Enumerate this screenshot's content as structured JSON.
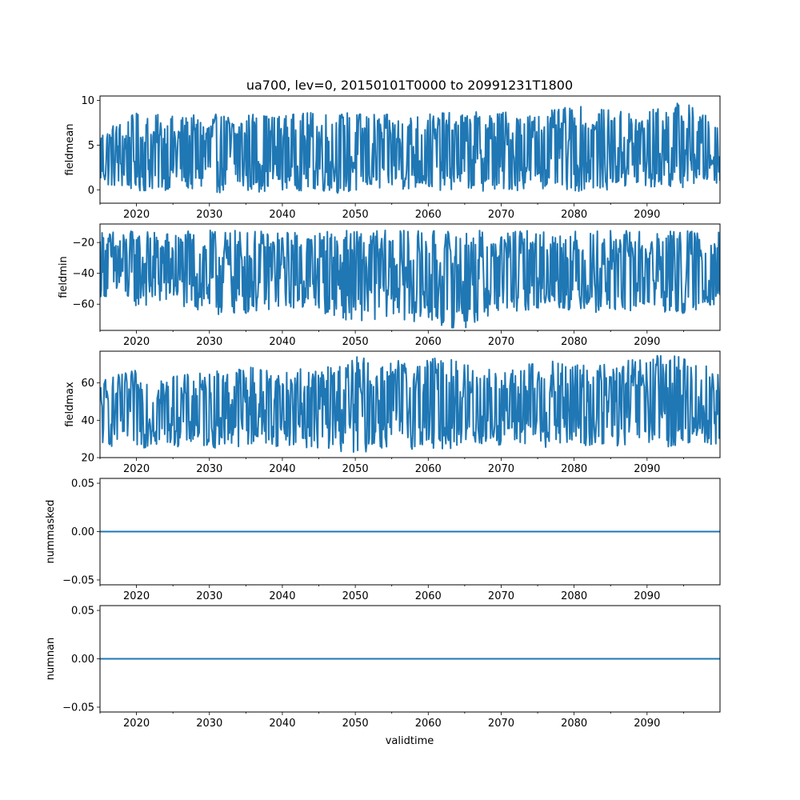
{
  "title": "ua700, lev=0, 20150101T0000 to 20991231T1800",
  "xlabel": "validtime",
  "chart_data": [
    {
      "type": "line",
      "ylabel": "fieldmean",
      "xlim": [
        2015.0,
        2100.0
      ],
      "ylim": [
        -1.5,
        10.5
      ],
      "xticks": [
        2020,
        2030,
        2040,
        2050,
        2060,
        2070,
        2080,
        2090
      ],
      "yticks": [
        0,
        5,
        10
      ],
      "ytick_labels": [
        "0",
        "5",
        "10"
      ],
      "series": [
        {
          "color": "#1f77b4",
          "envelope": {
            "x": [
              2015.0,
              2020.0,
              2025.0,
              2030.0,
              2035.0,
              2040.0,
              2045.0,
              2050.0,
              2055.0,
              2060.0,
              2065.0,
              2070.0,
              2075.0,
              2080.0,
              2085.0,
              2090.0,
              2095.0,
              2100.0
            ],
            "high": [
              6.8,
              8.6,
              8.3,
              8.4,
              8.7,
              8.4,
              8.8,
              8.7,
              8.4,
              8.6,
              8.7,
              8.9,
              8.6,
              9.4,
              8.9,
              8.9,
              10.0,
              7.3
            ],
            "low": [
              0.5,
              -0.3,
              0.0,
              -0.3,
              -0.4,
              0.0,
              -0.2,
              -0.6,
              0.0,
              -0.1,
              0.0,
              -0.3,
              0.2,
              -0.2,
              0.0,
              0.0,
              0.2,
              0.8
            ]
          }
        }
      ]
    },
    {
      "type": "line",
      "ylabel": "fieldmin",
      "xlim": [
        2015.0,
        2100.0
      ],
      "ylim": [
        -77.0,
        -8.0
      ],
      "xticks": [
        2020,
        2030,
        2040,
        2050,
        2060,
        2070,
        2080,
        2090
      ],
      "yticks": [
        -60,
        -40,
        -20
      ],
      "ytick_labels": [
        "−60",
        "−40",
        "−20"
      ],
      "series": [
        {
          "color": "#1f77b4",
          "envelope": {
            "x": [
              2015.0,
              2020.0,
              2025.0,
              2030.0,
              2035.0,
              2040.0,
              2045.0,
              2050.0,
              2055.0,
              2060.0,
              2065.0,
              2070.0,
              2075.0,
              2080.0,
              2085.0,
              2090.0,
              2095.0,
              2100.0
            ],
            "high": [
              -12,
              -12,
              -13,
              -12,
              -12,
              -13,
              -12,
              -12,
              -12,
              -12,
              -12,
              -12,
              -12,
              -12,
              -12,
              -12,
              -12,
              -12
            ],
            "low": [
              -55,
              -62,
              -60,
              -68,
              -67,
              -62,
              -65,
              -72,
              -68,
              -74,
              -76,
              -66,
              -63,
              -64,
              -66,
              -64,
              -68,
              -60
            ]
          }
        }
      ]
    },
    {
      "type": "line",
      "ylabel": "fieldmax",
      "xlim": [
        2015.0,
        2100.0
      ],
      "ylim": [
        20.0,
        77.0
      ],
      "xticks": [
        2020,
        2030,
        2040,
        2050,
        2060,
        2070,
        2080,
        2090
      ],
      "yticks": [
        20,
        40,
        60
      ],
      "ytick_labels": [
        "20",
        "40",
        "60"
      ],
      "series": [
        {
          "color": "#1f77b4",
          "envelope": {
            "x": [
              2015.0,
              2020.0,
              2025.0,
              2030.0,
              2035.0,
              2040.0,
              2045.0,
              2050.0,
              2055.0,
              2060.0,
              2065.0,
              2070.0,
              2075.0,
              2080.0,
              2085.0,
              2090.0,
              2095.0,
              2100.0
            ],
            "high": [
              62,
              67,
              64,
              66,
              70,
              67,
              68,
              74,
              72,
              74,
              72,
              66,
              72,
              71,
              70,
              75,
              75,
              66
            ],
            "low": [
              26,
              25,
              26,
              25,
              26,
              26,
              25,
              22,
              25,
              24,
              25,
              26,
              25,
              25,
              26,
              25,
              26,
              26
            ]
          }
        }
      ]
    },
    {
      "type": "line",
      "ylabel": "nummasked",
      "xlim": [
        2015.0,
        2100.0
      ],
      "ylim": [
        -0.055,
        0.055
      ],
      "xticks": [
        2020,
        2030,
        2040,
        2050,
        2060,
        2070,
        2080,
        2090
      ],
      "yticks": [
        -0.05,
        0.0,
        0.05
      ],
      "ytick_labels": [
        "−0.05",
        "0.00",
        "0.05"
      ],
      "series": [
        {
          "color": "#1f77b4",
          "x": [
            2015.0,
            2100.0
          ],
          "y": [
            0.0,
            0.0
          ]
        }
      ]
    },
    {
      "type": "line",
      "ylabel": "numnan",
      "xlim": [
        2015.0,
        2100.0
      ],
      "ylim": [
        -0.055,
        0.055
      ],
      "xticks": [
        2020,
        2030,
        2040,
        2050,
        2060,
        2070,
        2080,
        2090
      ],
      "yticks": [
        -0.05,
        0.0,
        0.05
      ],
      "ytick_labels": [
        "−0.05",
        "0.00",
        "0.05"
      ],
      "series": [
        {
          "color": "#1f77b4",
          "x": [
            2015.0,
            2100.0
          ],
          "y": [
            0.0,
            0.0
          ]
        }
      ]
    }
  ]
}
